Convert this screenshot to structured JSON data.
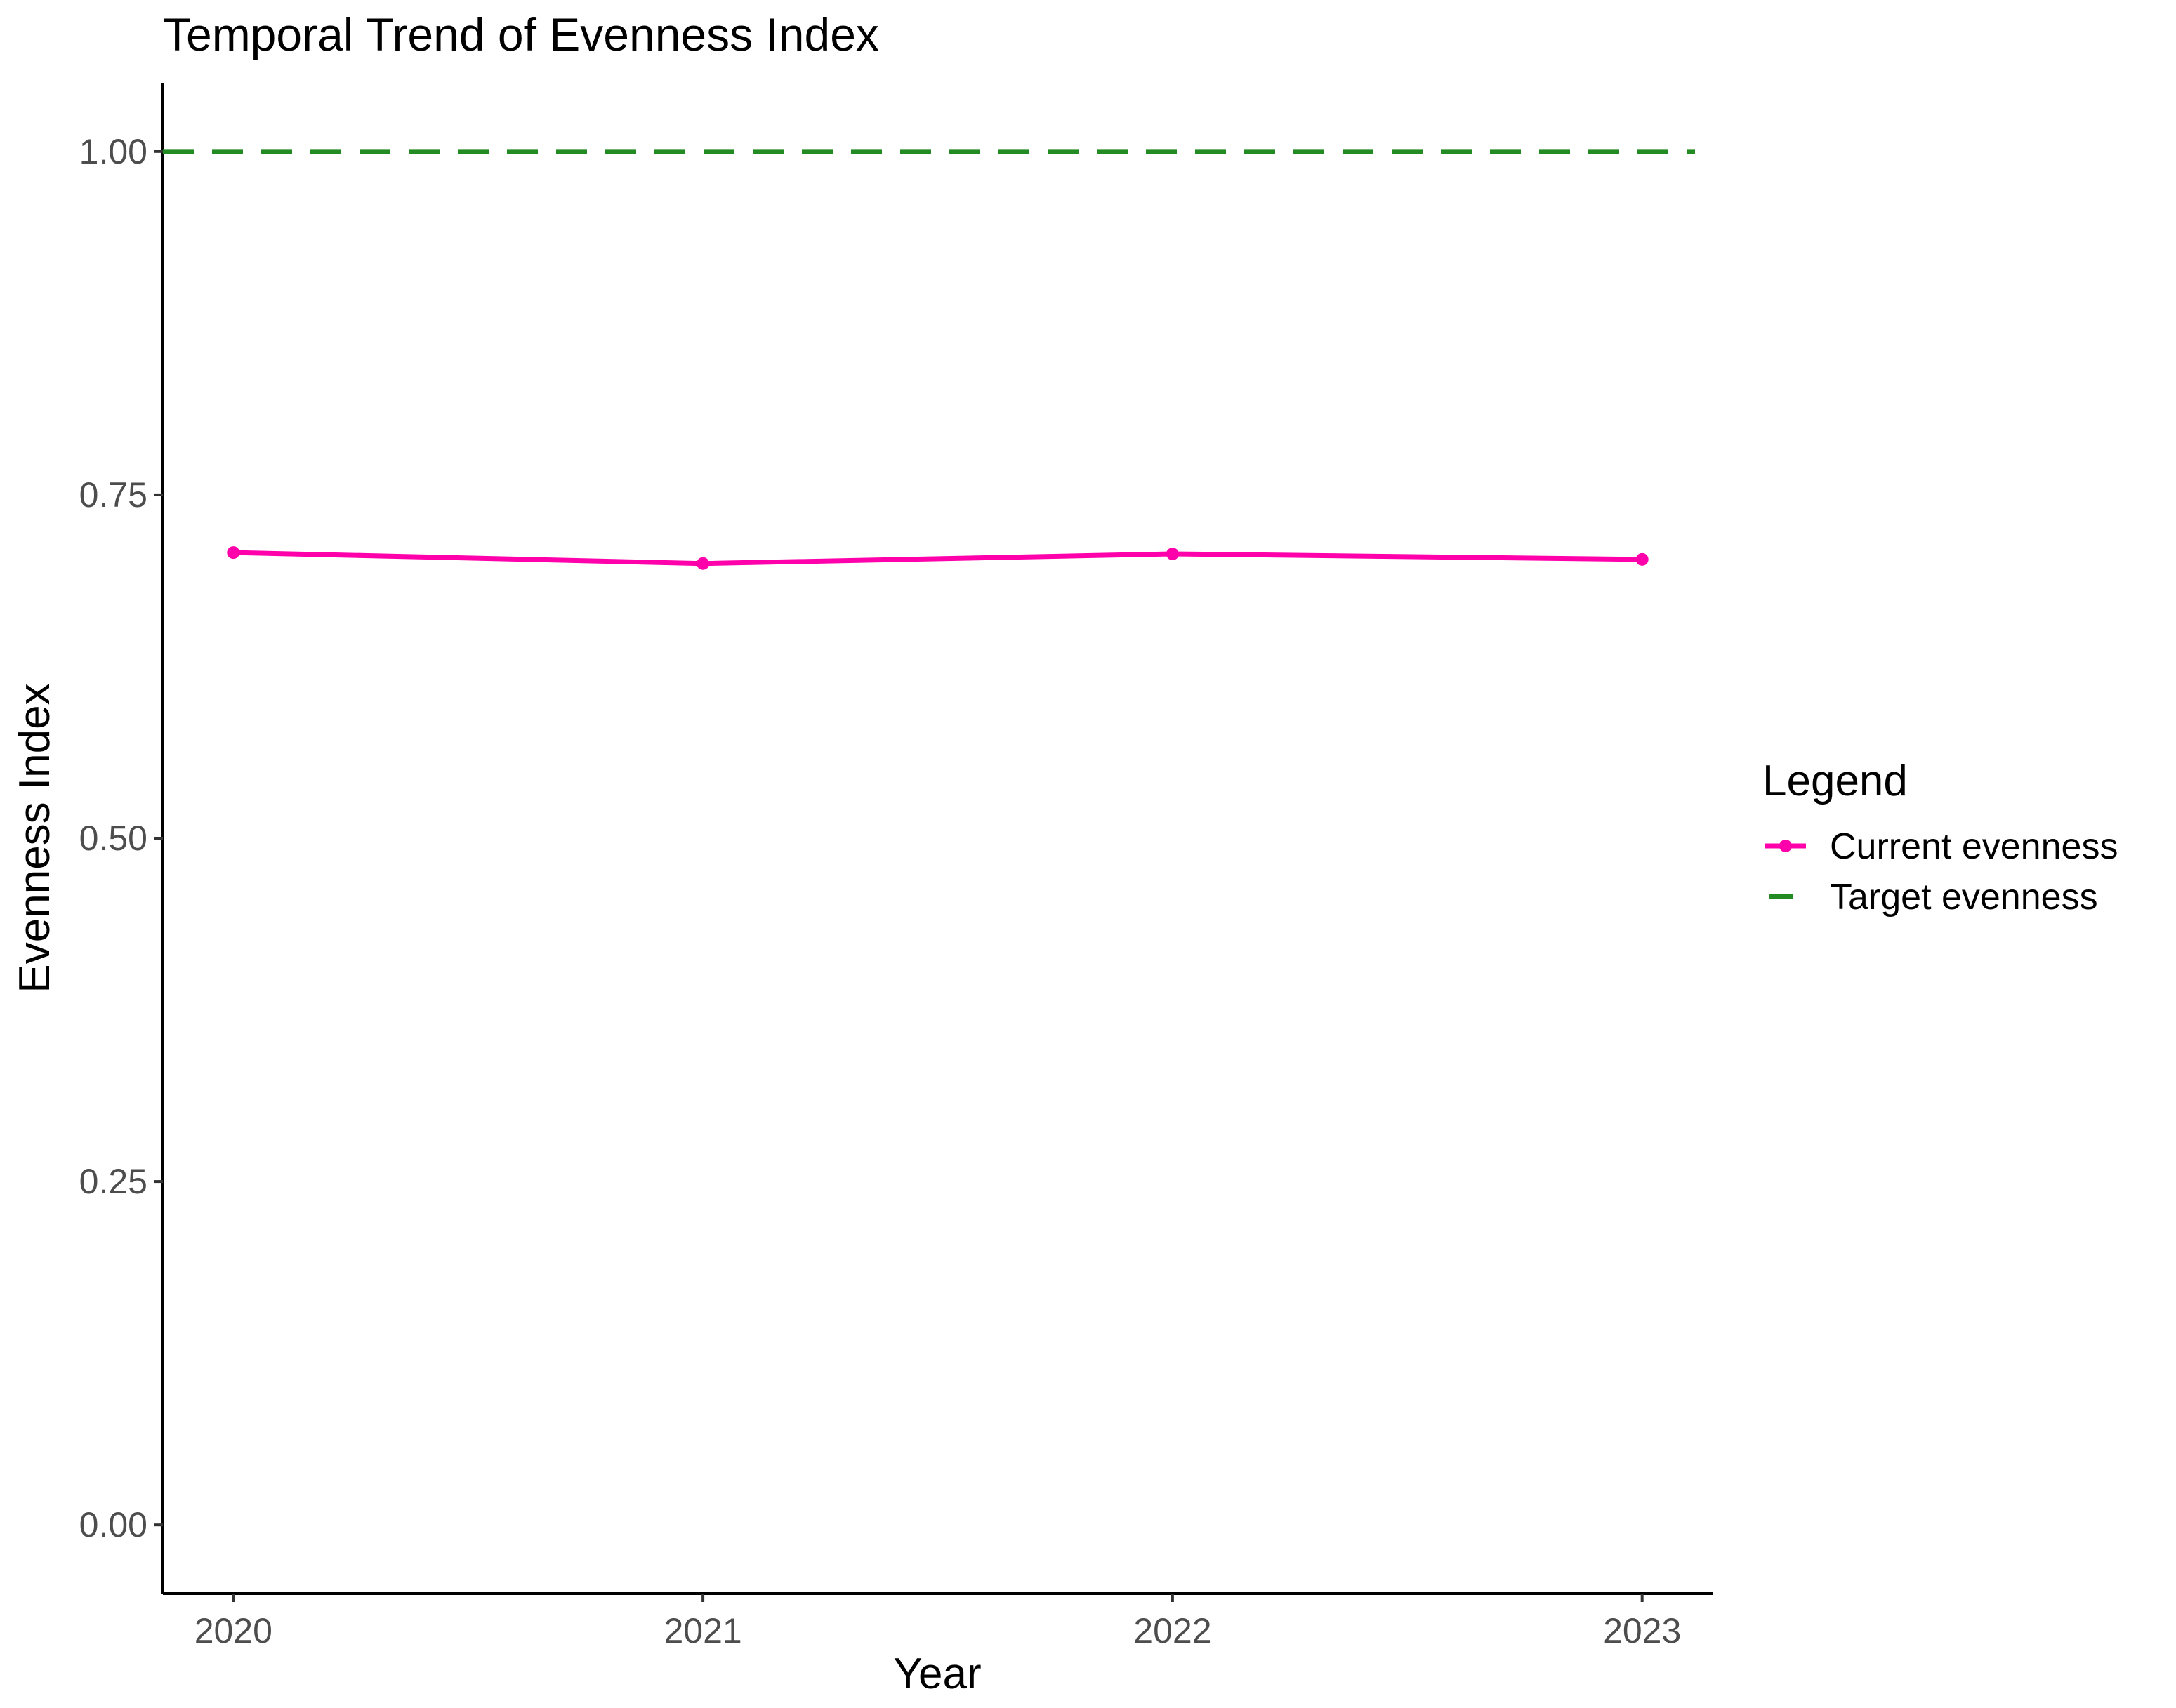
{
  "chart_data": {
    "type": "line",
    "title": "Temporal Trend of Evenness Index",
    "xlabel": "Year",
    "ylabel": "Evenness Index",
    "x": [
      2020,
      2021,
      2022,
      2023
    ],
    "x_tick_labels": [
      "2020",
      "2021",
      "2022",
      "2023"
    ],
    "xlim": [
      2019.85,
      2023.15
    ],
    "ylim": [
      -0.05,
      1.05
    ],
    "y_ticks": [
      0,
      0.25,
      0.5,
      0.75,
      1
    ],
    "y_tick_labels": [
      "0.00",
      "0.25",
      "0.50",
      "0.75",
      "1.00"
    ],
    "grid": false,
    "legend_position": "right",
    "legend_title": "Legend",
    "series": [
      {
        "name": "Current evenness",
        "values": [
          0.708,
          0.7,
          0.707,
          0.703
        ],
        "color": "#FF00AA",
        "style": "solid",
        "markers": true
      },
      {
        "name": "Target evenness",
        "values": [
          1,
          1,
          1,
          1
        ],
        "color": "#228B22",
        "style": "dashed",
        "markers": false
      }
    ]
  }
}
